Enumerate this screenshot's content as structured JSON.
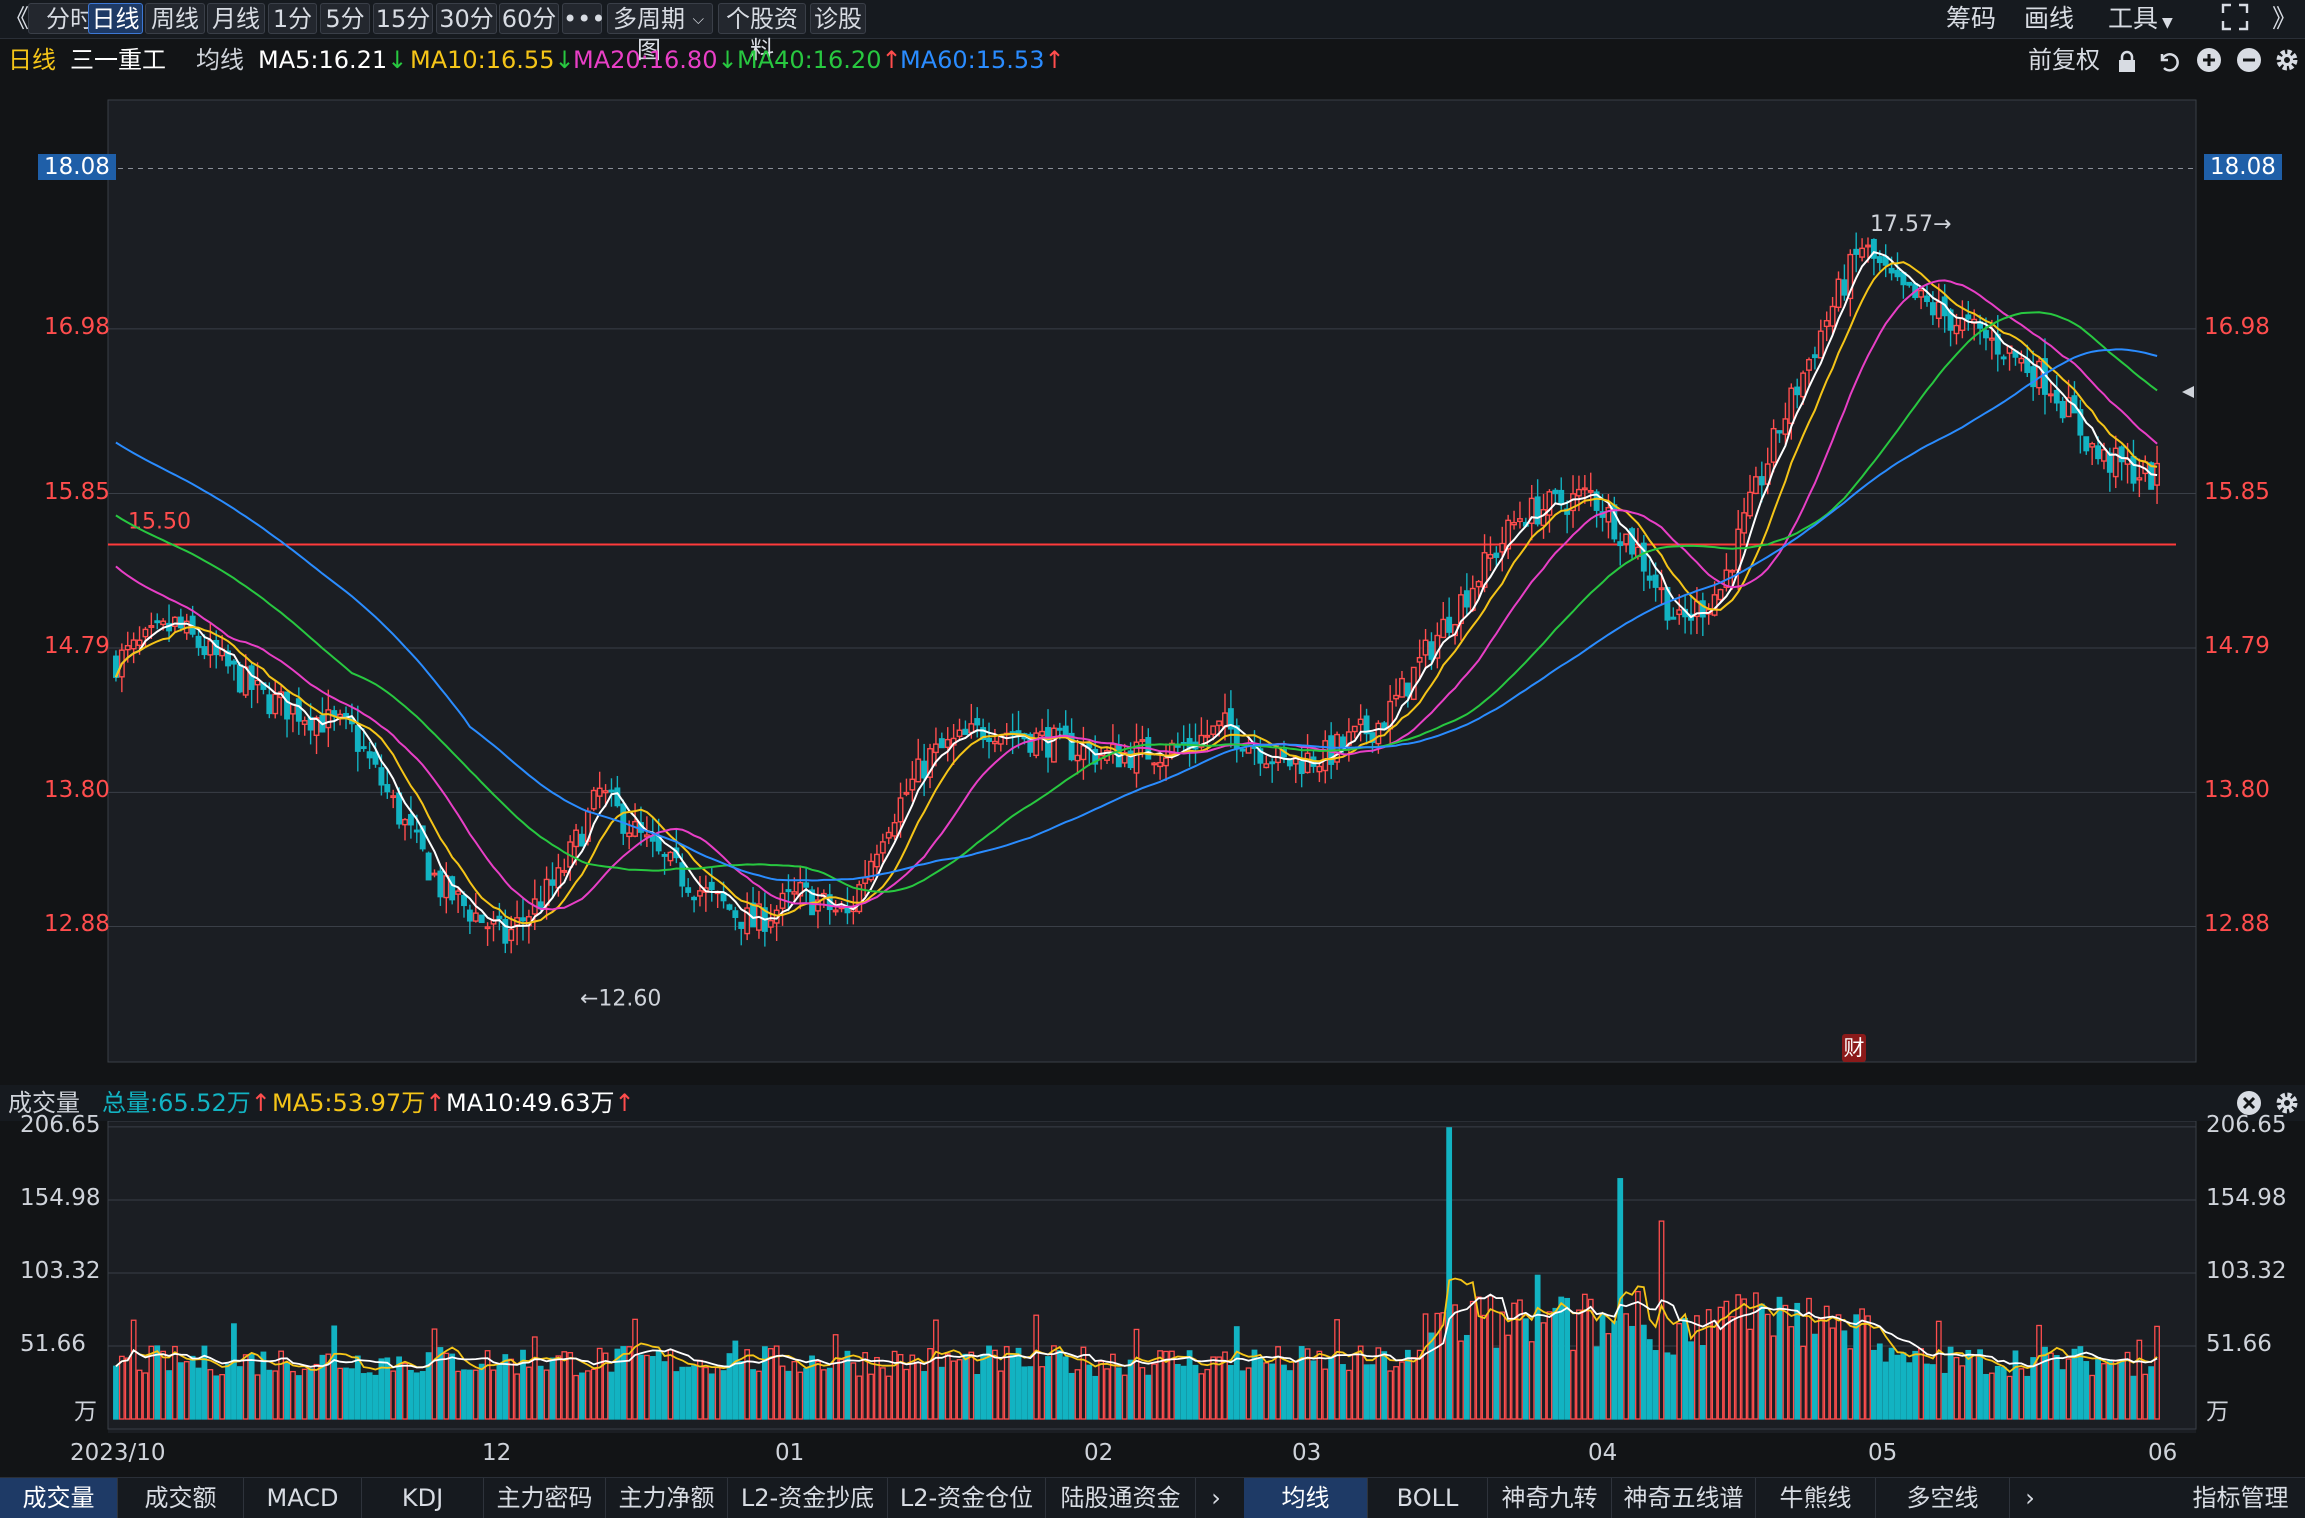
{
  "toolbar": {
    "back_glyph": "《",
    "tabs": [
      "分时",
      "日线",
      "周线",
      "月线",
      "1分",
      "5分",
      "15分",
      "30分",
      "60分",
      "•••",
      "多周期图",
      "个股资料",
      "诊股"
    ],
    "active_tab": "日线",
    "multi_period_arrow": "chevron-down-icon",
    "right_items": [
      "筹码",
      "画线",
      "工具"
    ],
    "tools_arrow": "▼",
    "expand_icon": "expand-icon",
    "forward_glyph": "》"
  },
  "info": {
    "period": "日线",
    "stock_name": "三一重工",
    "indicator": "均线",
    "ma5": "MA5:16.21",
    "ma10": "MA10:16.55",
    "ma20": "MA20:16.80",
    "ma40": "MA40:16.20",
    "ma60": "MA60:15.53",
    "ma5_trend": "↓",
    "ma10_trend": "↓",
    "ma20_trend": "↓",
    "ma40_trend": "↑",
    "ma60_trend": "↑",
    "adjust": "前复权",
    "colors": {
      "ma5": "#ffffff",
      "ma10": "#f5c518",
      "ma20": "#e83fc6",
      "ma40": "#28c840",
      "ma60": "#2a8cff",
      "up": "#ff4d4d",
      "down": "#12b3c2"
    }
  },
  "price_chart": {
    "y_labels": [
      "18.08",
      "16.98",
      "15.85",
      "14.79",
      "13.80",
      "12.88"
    ],
    "ylim": [
      11.95,
      18.55
    ],
    "hline_value": 15.5,
    "hline_label": "15.50",
    "high_label": "17.57→",
    "low_label": "←12.60",
    "cai_badge": "财"
  },
  "volume": {
    "title": "成交量",
    "total": "总量:65.52万",
    "total_trend": "↑",
    "ma5": "MA5:53.97万",
    "ma5_trend": "↑",
    "ma10": "MA10:49.63万",
    "ma10_trend": "↑",
    "y_labels": [
      "206.65",
      "154.98",
      "103.32",
      "51.66",
      "万"
    ],
    "ylim": [
      0,
      208
    ]
  },
  "x_labels": [
    "2023/10",
    "12",
    "01",
    "02",
    "03",
    "04",
    "05",
    "06"
  ],
  "bottom_tabs_left": [
    "成交量",
    "成交额",
    "MACD",
    "KDJ",
    "主力密码",
    "主力净额",
    "L2-资金抄底",
    "L2-资金仓位",
    "陆股通资金"
  ],
  "bottom_tabs_right": [
    "均线",
    "BOLL",
    "神奇九转",
    "神奇五线谱",
    "牛熊线",
    "多空线"
  ],
  "bottom_more": "指标管理",
  "chart_data": {
    "type": "candlestick",
    "title": "",
    "xlabel": "",
    "ylabel": "",
    "x_labels": [
      "2023/10",
      "12",
      "01",
      "02",
      "03",
      "04",
      "05",
      "06"
    ],
    "series": [
      {
        "name": "MA5",
        "values": [
          16.21
        ]
      },
      {
        "name": "MA10",
        "values": [
          16.55
        ]
      },
      {
        "name": "MA20",
        "values": [
          16.8
        ]
      },
      {
        "name": "MA40",
        "values": [
          16.2
        ]
      },
      {
        "name": "MA60",
        "values": [
          15.53
        ]
      }
    ],
    "ylim": [
      11.95,
      18.55
    ],
    "volume_ylim": [
      0,
      208
    ]
  }
}
